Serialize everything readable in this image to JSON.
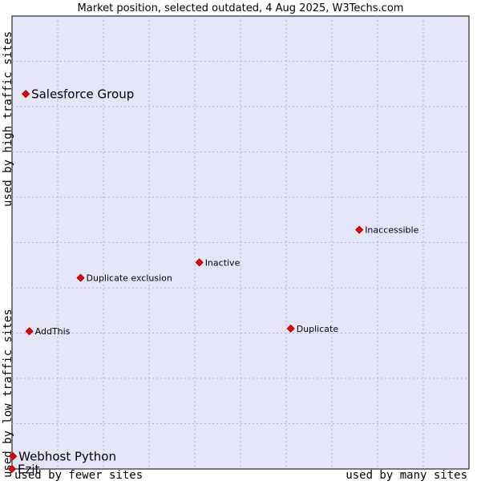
{
  "chart_data": {
    "type": "scatter",
    "title": "Market position, selected outdated, 4 Aug 2025, W3Techs.com",
    "xlabel_low": "used by fewer sites",
    "xlabel_high": "used by many sites",
    "ylabel_low": "used by low traffic sites",
    "ylabel_high": "used by high traffic sites",
    "xlim": [
      0,
      100
    ],
    "ylim": [
      0,
      100
    ],
    "grid": true,
    "colors": {
      "plot_background": "#e4e6f8",
      "grid": "#b0b0c8",
      "point": "#ee0000"
    },
    "points": [
      {
        "label": "Salesforce Group",
        "x": 3.0,
        "y": 82.8,
        "emphasis": true
      },
      {
        "label": "Inaccessible",
        "x": 76.0,
        "y": 52.8,
        "emphasis": false
      },
      {
        "label": "Inactive",
        "x": 41.0,
        "y": 45.6,
        "emphasis": false
      },
      {
        "label": "Duplicate exclusion",
        "x": 15.0,
        "y": 42.2,
        "emphasis": false
      },
      {
        "label": "AddThis",
        "x": 3.8,
        "y": 30.4,
        "emphasis": false
      },
      {
        "label": "Duplicate",
        "x": 61.0,
        "y": 31.0,
        "emphasis": false
      },
      {
        "label": "Webhost Python",
        "x": 0.2,
        "y": 2.8,
        "emphasis": true
      },
      {
        "label": "Ezit",
        "x": 0.0,
        "y": 0.0,
        "emphasis": true
      }
    ]
  }
}
